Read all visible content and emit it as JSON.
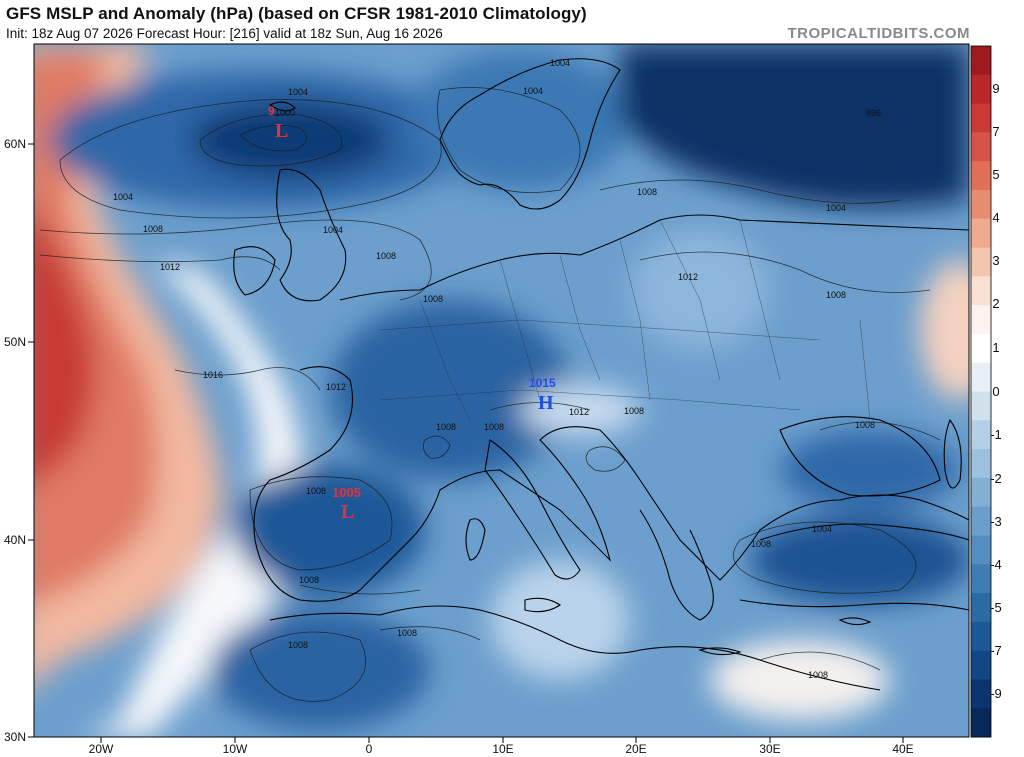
{
  "header": {
    "title": "GFS MSLP and Anomaly (hPa) (based on CFSR 1981-2010 Climatology)",
    "subtitle": "Init: 18z Aug 07 2026   Forecast Hour: [216]   valid at 18z Sun, Aug 16 2026",
    "brand": "TROPICALTIDBITS.COM"
  },
  "axes": {
    "lat_labels": [
      "60N",
      "50N",
      "40N",
      "30N"
    ],
    "lon_labels": [
      "20W",
      "10W",
      "0",
      "10E",
      "20E",
      "30E",
      "40E"
    ]
  },
  "colorbar": {
    "labels": [
      "9",
      "7",
      "5",
      "4",
      "3",
      "2",
      "1",
      "0",
      "-1",
      "-2",
      "-3",
      "-4",
      "-5",
      "-7",
      "-9"
    ],
    "colors": [
      "#9e1a1f",
      "#b8272a",
      "#c93a35",
      "#d65346",
      "#e06f58",
      "#e88c70",
      "#efaa8f",
      "#f4c6b0",
      "#f8e0d2",
      "#fbf3ee",
      "#ffffff",
      "#e8eff6",
      "#cfe0ef",
      "#b5d0e6",
      "#9cc1de",
      "#82b0d4",
      "#6a9fcb",
      "#548ec0",
      "#3f7cb3",
      "#2c6aa5",
      "#1d5896",
      "#124684",
      "#0b3570",
      "#08285a"
    ]
  },
  "pressure_systems": [
    {
      "type": "L",
      "value": "9",
      "color": "#e8303a"
    },
    {
      "type": "L",
      "value": "1005",
      "color": "#e8303a"
    },
    {
      "type": "H",
      "value": "1015",
      "color": "#1f4fe0"
    }
  ],
  "isobar_labels": [
    "1004",
    "1004",
    "1004",
    "1000",
    "1004",
    "1008",
    "1012",
    "1004",
    "1008",
    "1008",
    "1016",
    "1012",
    "1008",
    "1012",
    "1012",
    "1008",
    "1008",
    "1008",
    "1008",
    "1008",
    "1008",
    "1008",
    "1004",
    "1008",
    "1008",
    "1008",
    "996",
    "1004",
    "1008"
  ]
}
